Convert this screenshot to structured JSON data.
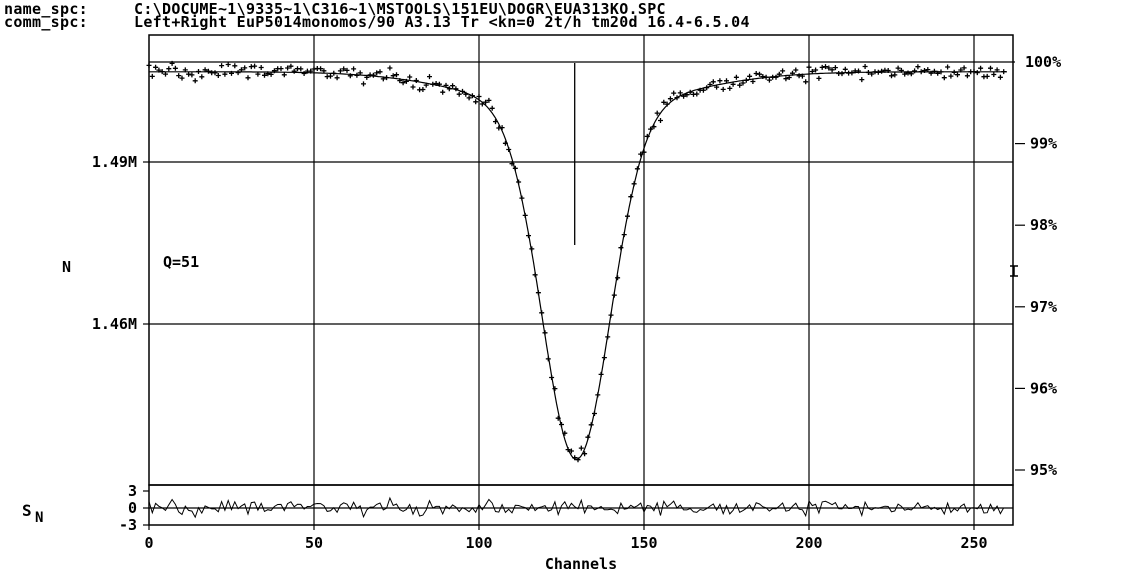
{
  "header": {
    "name_key": "name_spc:",
    "name_value": "C:\\DOCUME~1\\9335~1\\C316~1\\MSTOOLS\\151EU\\DOGR\\EUA313KO.SPC",
    "comm_key": "comm_spc:",
    "comm_value": "Left+Right EuP5014monomos/90 A3.13 Tr <kn=0 2t/h tm20d 16.4-6.5.04"
  },
  "annotation": "Q=51",
  "chart_data": {
    "type": "scatter",
    "title": "",
    "xlabel": "Channels",
    "ylabel": "N",
    "xlim": [
      0,
      261
    ],
    "x_ticks": [
      0,
      50,
      100,
      150,
      200,
      250
    ],
    "y_left_ticks": [
      {
        "value": 1.49,
        "label": "1.49M"
      },
      {
        "value": 1.46,
        "label": "1.46M"
      }
    ],
    "y_right_ticks": [
      "100%",
      "99%",
      "98%",
      "97%",
      "96%",
      "95%"
    ],
    "y_right_values": [
      100,
      99,
      98,
      97,
      96,
      95
    ],
    "grid": true,
    "marker_channel": 129,
    "fit_curve": {
      "baseline_pct": 99.88,
      "depth_pct": 4.3,
      "center_channel": 129.5,
      "width_channels": 14.5,
      "minimum_pct": 95.58
    },
    "residual_panel": {
      "ylabel": "S",
      "ylabel_sub": "N",
      "y_ticks": [
        "3",
        "0",
        "-3"
      ],
      "y_tick_values": [
        3,
        0,
        -3
      ]
    },
    "series": [
      {
        "type": "scatter",
        "marker": "+",
        "source": "measured spectrum",
        "x_from": 0,
        "x_to": 259
      },
      {
        "type": "line",
        "source": "fit_curve"
      },
      {
        "type": "line",
        "source": "residuals"
      }
    ]
  }
}
